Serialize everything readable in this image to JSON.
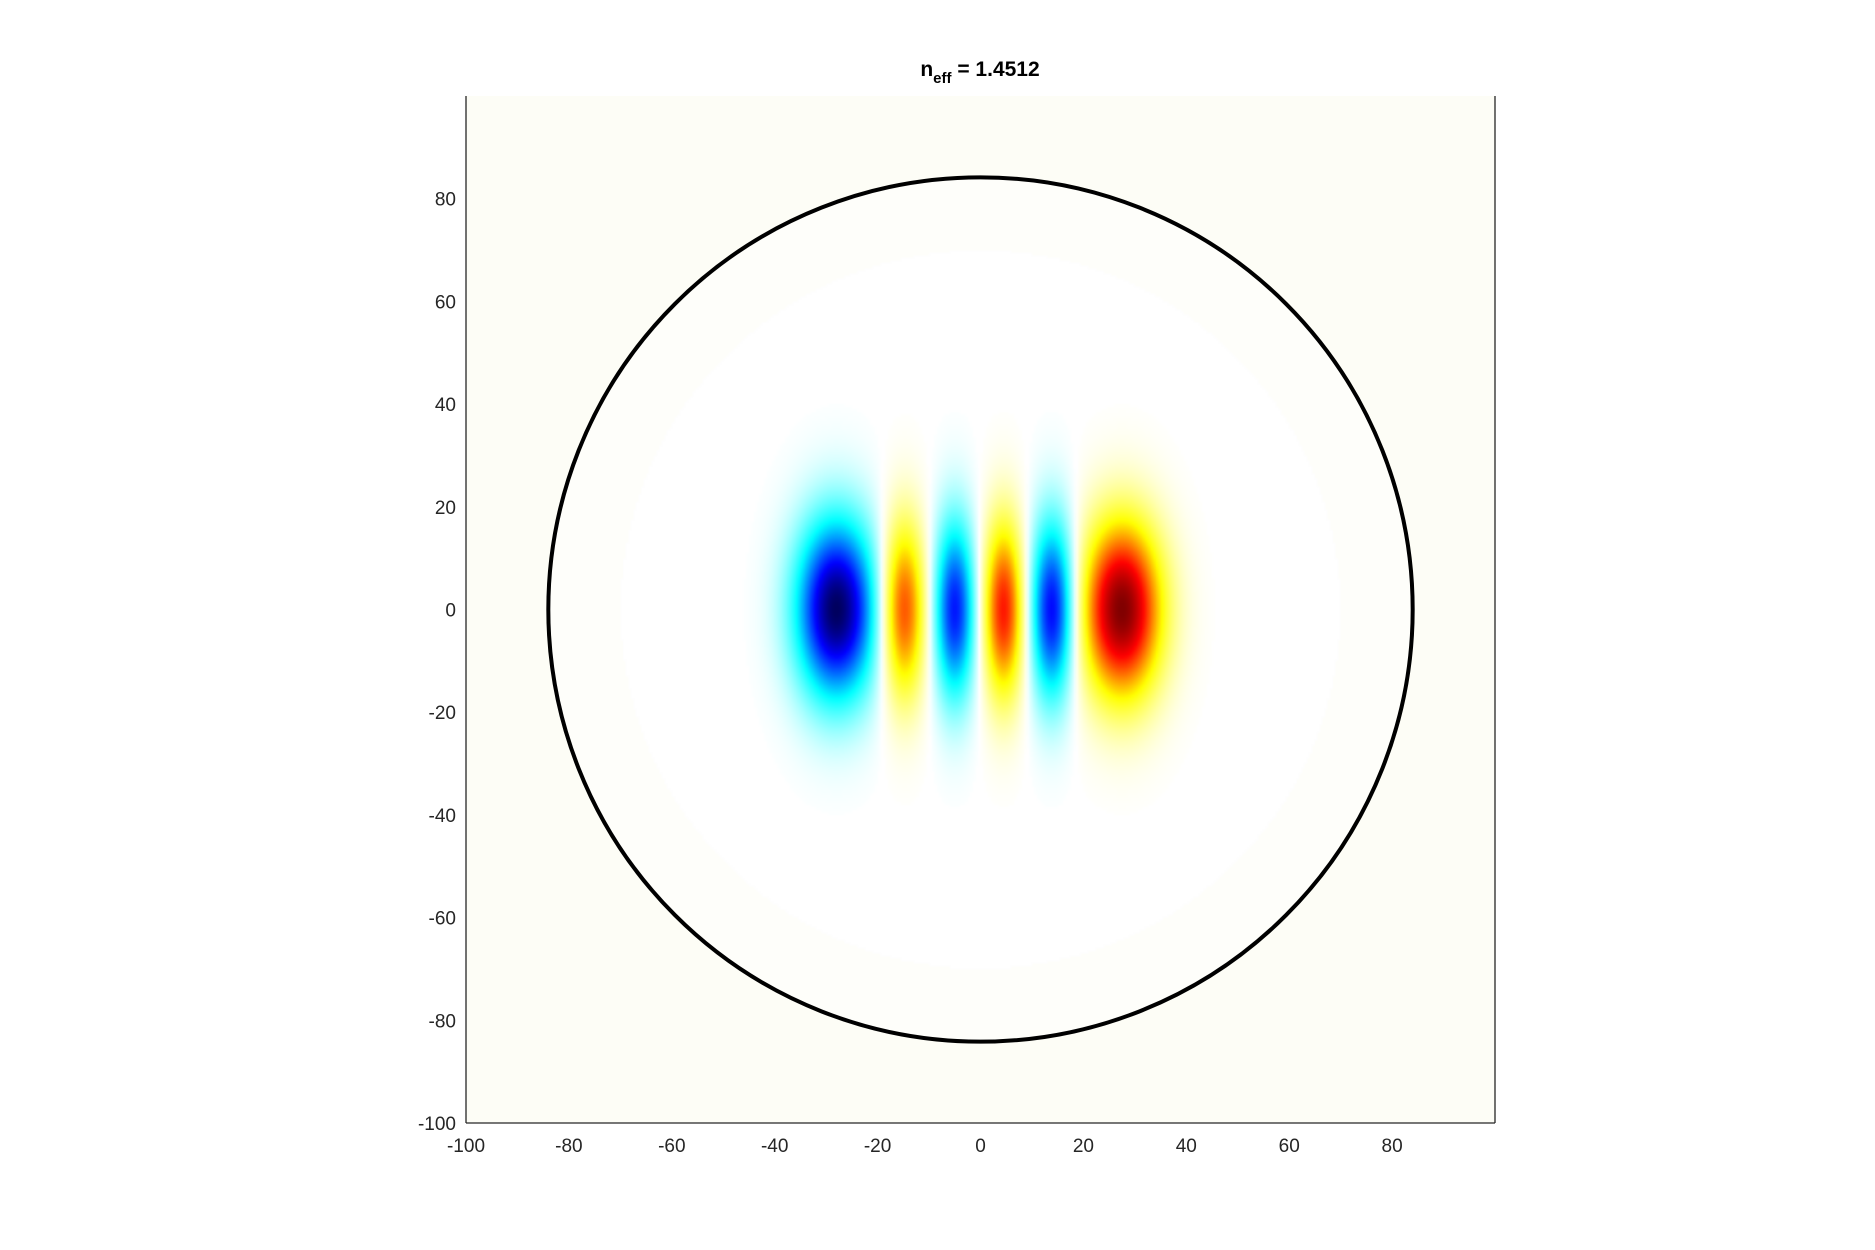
{
  "chart_data": {
    "type": "heatmap",
    "title": {
      "base": "n",
      "subscript": "eff",
      "rest": " = 1.4512"
    },
    "xlabel": "",
    "ylabel": "",
    "xlim": [
      -100,
      100
    ],
    "ylim": [
      -100,
      100
    ],
    "xticks": [
      -100,
      -80,
      -60,
      -40,
      -20,
      0,
      20,
      40,
      60,
      80
    ],
    "yticks": [
      -100,
      -80,
      -60,
      -40,
      -20,
      0,
      20,
      40,
      60,
      80
    ],
    "grid": false,
    "colormap": "jet-white-centered",
    "colors": {
      "background": "#fdfdf6",
      "negative_peak": "#00005e",
      "positive_peak": "#800000",
      "boundary": "#000000"
    },
    "boundary_circle": {
      "center": [
        0,
        0
      ],
      "radius": 84
    },
    "field_lobes": [
      {
        "x": -28.0,
        "sigma_x": 5.4,
        "amplitude": -1.0
      },
      {
        "x": -15.0,
        "sigma_x": 3.0,
        "amplitude": 0.66
      },
      {
        "x": -5.0,
        "sigma_x": 2.8,
        "amplitude": -0.72
      },
      {
        "x": 4.5,
        "sigma_x": 2.8,
        "amplitude": 0.72
      },
      {
        "x": 14.0,
        "sigma_x": 3.0,
        "amplitude": -0.78
      },
      {
        "x": 27.5,
        "sigma_x": 5.4,
        "amplitude": 1.0
      }
    ],
    "field_sigma_y": 12.0
  }
}
